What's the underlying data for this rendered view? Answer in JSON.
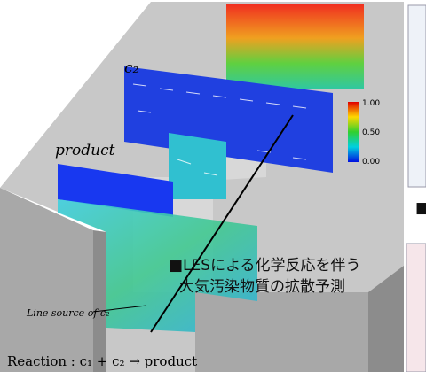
{
  "labels": {
    "c2": "c₂",
    "product": "product",
    "line_source": "Line source of c₂",
    "reaction": "Reaction : c₁ + c₂ → product"
  },
  "colorbar": {
    "ticks": [
      "1.00",
      "0.50",
      "0.00"
    ]
  },
  "caption": {
    "line1": "■LESによる化学反応を伴う",
    "line2": "大気汚染物質の拡散予測"
  },
  "side": {
    "marker": "■"
  }
}
